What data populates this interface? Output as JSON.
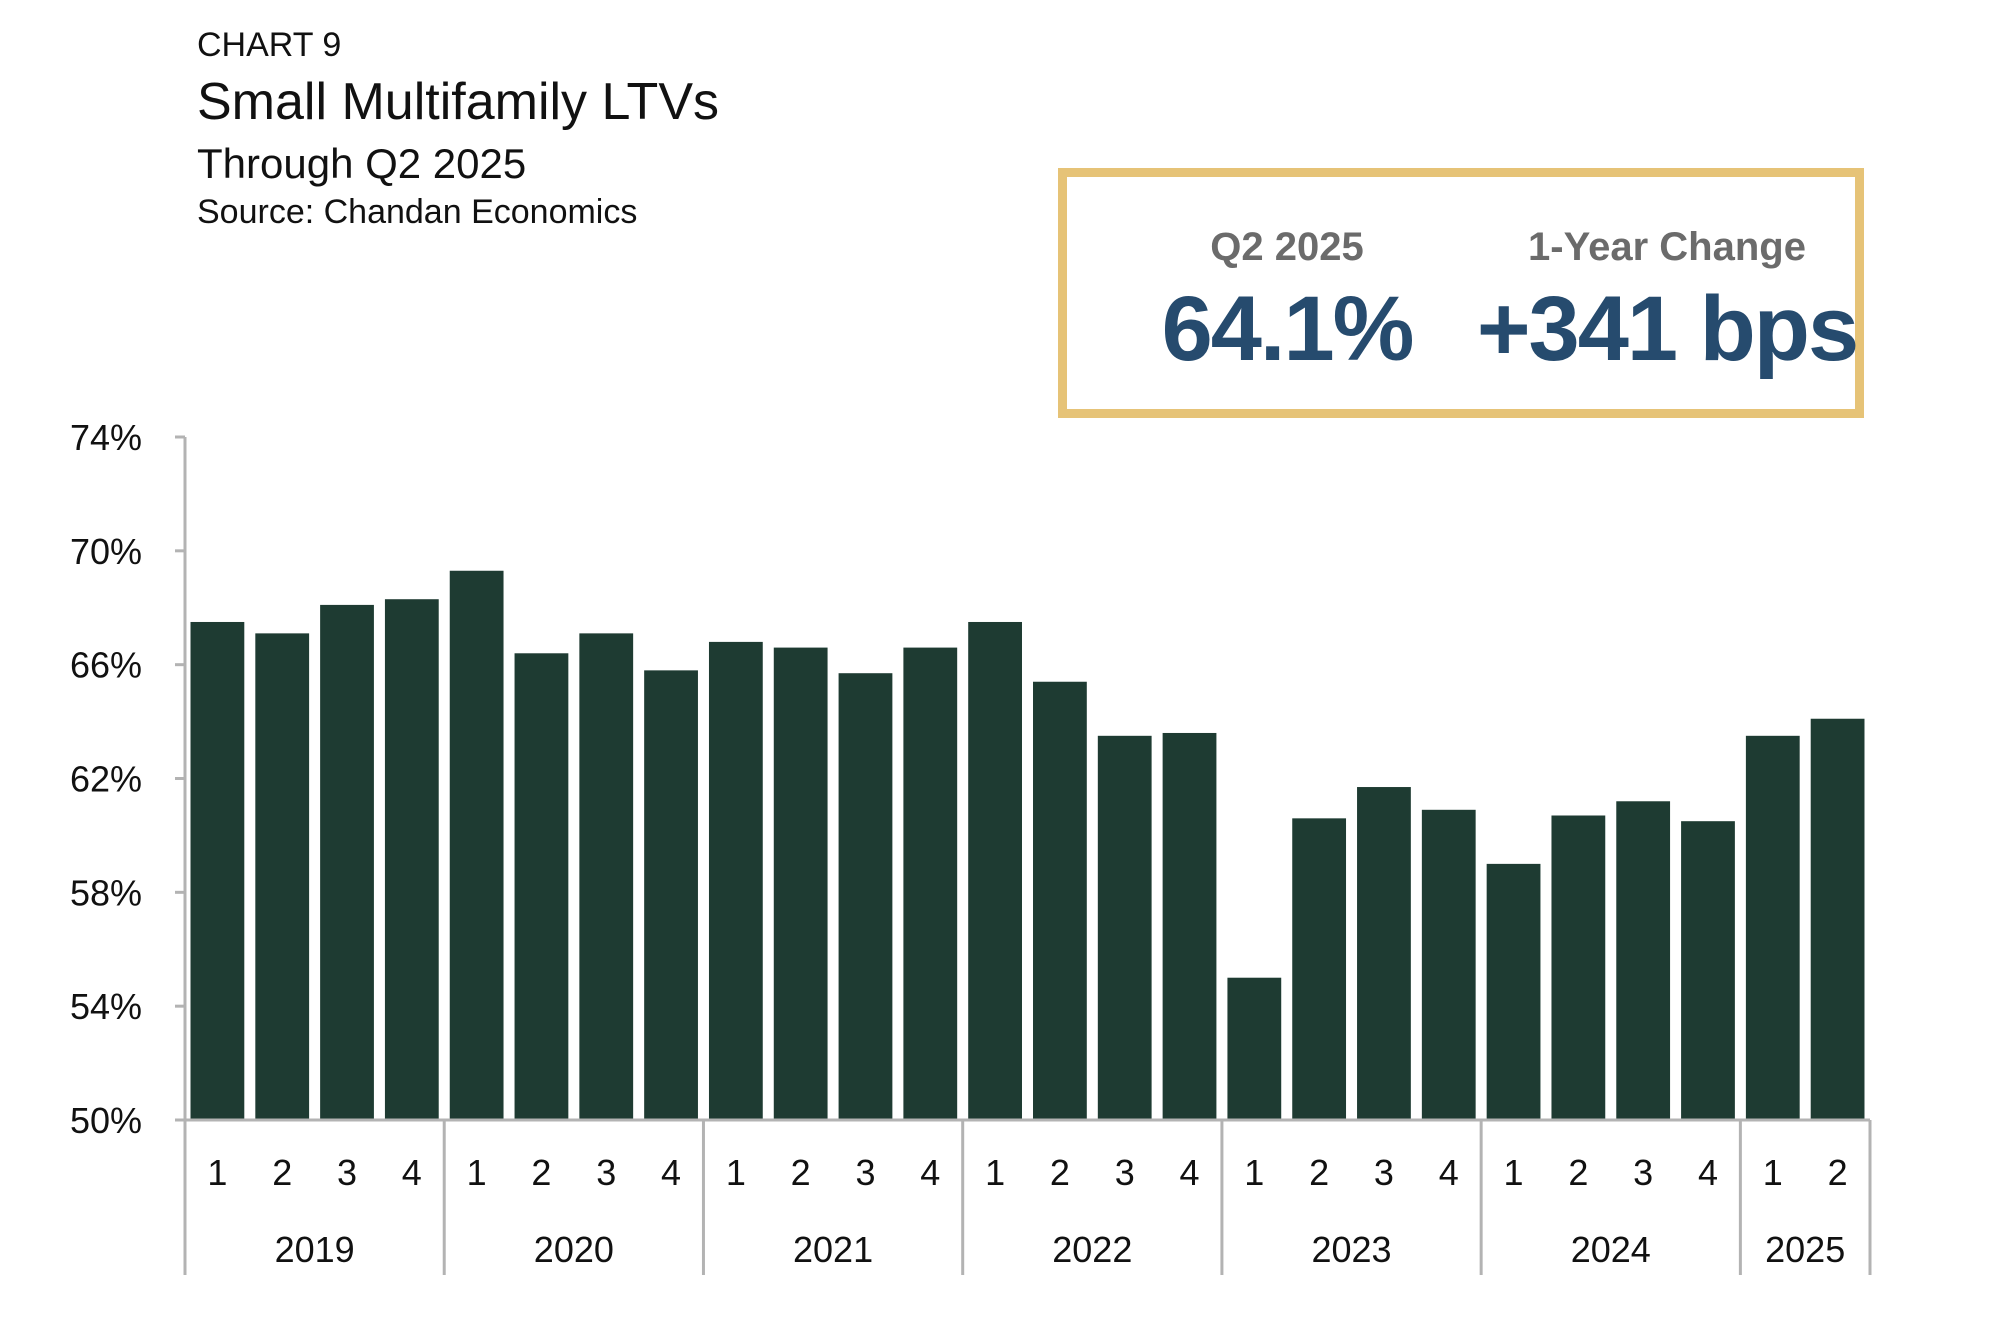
{
  "header": {
    "label": "CHART 9",
    "title": "Small Multifamily LTVs",
    "subtitle": "Through Q2 2025",
    "source": "Source: Chandan Economics"
  },
  "kpis": [
    {
      "label": "Q2 2025",
      "value": "64.1%"
    },
    {
      "label": "1-Year Change",
      "value": "+341 bps"
    }
  ],
  "colors": {
    "bar": "#1e3b32",
    "accent": "#e6c377",
    "kpi_value": "#264b6e",
    "axis": "#b3b3b3"
  },
  "chart_data": {
    "type": "bar",
    "ylim": [
      50,
      74
    ],
    "yticks": [
      50,
      54,
      58,
      62,
      66,
      70,
      74
    ],
    "ytick_labels": [
      "50%",
      "54%",
      "58%",
      "62%",
      "66%",
      "70%",
      "74%"
    ],
    "grid": false,
    "years": [
      "2019",
      "2020",
      "2021",
      "2022",
      "2023",
      "2024",
      "2025"
    ],
    "categories": [
      {
        "year": "2019",
        "quarter": "1"
      },
      {
        "year": "2019",
        "quarter": "2"
      },
      {
        "year": "2019",
        "quarter": "3"
      },
      {
        "year": "2019",
        "quarter": "4"
      },
      {
        "year": "2020",
        "quarter": "1"
      },
      {
        "year": "2020",
        "quarter": "2"
      },
      {
        "year": "2020",
        "quarter": "3"
      },
      {
        "year": "2020",
        "quarter": "4"
      },
      {
        "year": "2021",
        "quarter": "1"
      },
      {
        "year": "2021",
        "quarter": "2"
      },
      {
        "year": "2021",
        "quarter": "3"
      },
      {
        "year": "2021",
        "quarter": "4"
      },
      {
        "year": "2022",
        "quarter": "1"
      },
      {
        "year": "2022",
        "quarter": "2"
      },
      {
        "year": "2022",
        "quarter": "3"
      },
      {
        "year": "2022",
        "quarter": "4"
      },
      {
        "year": "2023",
        "quarter": "1"
      },
      {
        "year": "2023",
        "quarter": "2"
      },
      {
        "year": "2023",
        "quarter": "3"
      },
      {
        "year": "2023",
        "quarter": "4"
      },
      {
        "year": "2024",
        "quarter": "1"
      },
      {
        "year": "2024",
        "quarter": "2"
      },
      {
        "year": "2024",
        "quarter": "3"
      },
      {
        "year": "2024",
        "quarter": "4"
      },
      {
        "year": "2025",
        "quarter": "1"
      },
      {
        "year": "2025",
        "quarter": "2"
      }
    ],
    "values": [
      67.5,
      67.1,
      68.1,
      68.3,
      69.3,
      66.4,
      67.1,
      65.8,
      66.8,
      66.6,
      65.7,
      66.6,
      67.5,
      65.4,
      63.5,
      63.6,
      55.0,
      60.6,
      61.7,
      60.9,
      59.0,
      60.7,
      61.2,
      60.5,
      63.5,
      64.1
    ]
  }
}
